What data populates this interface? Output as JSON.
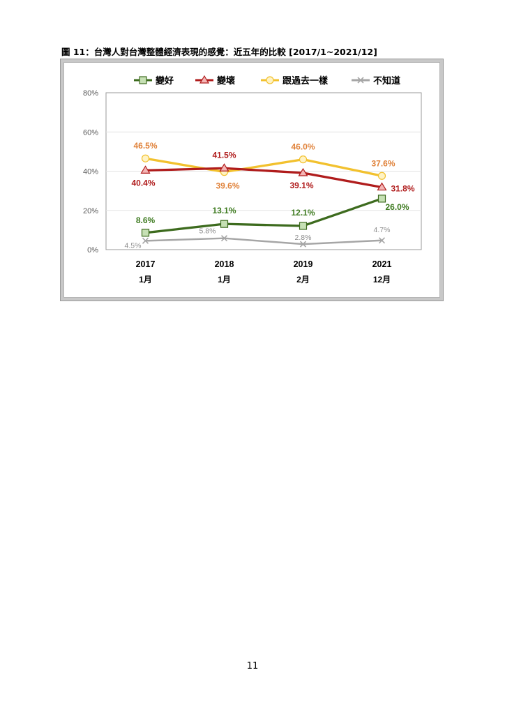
{
  "figure_title": "圖 11：台灣人對台灣整體經濟表現的感覺：近五年的比較 [2017/1~2021/12]",
  "page_number": "11",
  "chart_data": {
    "type": "line",
    "categories": [
      {
        "year": "2017",
        "month": "1月"
      },
      {
        "year": "2018",
        "month": "1月"
      },
      {
        "year": "2019",
        "month": "2月"
      },
      {
        "year": "2021",
        "month": "12月"
      }
    ],
    "ylim": [
      0,
      80
    ],
    "yticks": [
      "0%",
      "20%",
      "40%",
      "60%",
      "80%"
    ],
    "grid": true,
    "legend_placement": "top",
    "series": [
      {
        "name": "變好",
        "color": "#3d6b1e",
        "marker": "square",
        "marker_fill": "#c6e0b4",
        "values": [
          8.6,
          13.1,
          12.1,
          26.0
        ],
        "labels": [
          "8.6%",
          "13.1%",
          "12.1%",
          "26.0%"
        ],
        "label_color": "#3d7a1f"
      },
      {
        "name": "變壞",
        "color": "#b01c1c",
        "marker": "triangle",
        "marker_fill": "#f4b6b6",
        "values": [
          40.4,
          41.5,
          39.1,
          31.8
        ],
        "labels": [
          "40.4%",
          "41.5%",
          "39.1%",
          "31.8%"
        ],
        "label_color": "#b01c1c"
      },
      {
        "name": "跟過去一樣",
        "color": "#f2c12e",
        "marker": "circle",
        "marker_fill": "#fff3c4",
        "values": [
          46.5,
          39.6,
          46.0,
          37.6
        ],
        "labels": [
          "46.5%",
          "39.6%",
          "46.0%",
          "37.6%"
        ],
        "label_color": "#e0823a"
      },
      {
        "name": "不知道",
        "color": "#a6a6a6",
        "marker": "x",
        "marker_fill": "#a6a6a6",
        "values": [
          4.5,
          5.8,
          2.8,
          4.7
        ],
        "labels": [
          "4.5%",
          "5.8%",
          "2.8%",
          "4.7%"
        ],
        "label_color": "#8c8c8c"
      }
    ]
  }
}
